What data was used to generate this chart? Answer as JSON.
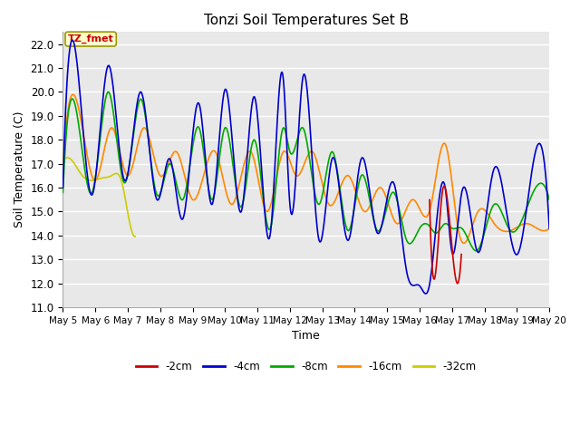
{
  "title": "Tonzi Soil Temperatures Set B",
  "xlabel": "Time",
  "ylabel": "Soil Temperature (C)",
  "ylim": [
    11.0,
    22.5
  ],
  "yticks": [
    11.0,
    12.0,
    13.0,
    14.0,
    15.0,
    16.0,
    17.0,
    18.0,
    19.0,
    20.0,
    21.0,
    22.0
  ],
  "bg_color": "#ffffff",
  "plot_bg_color": "#e8e8e8",
  "grid_color": "#ffffff",
  "annotation_text": "TZ_fmet",
  "annotation_color": "#cc0000",
  "annotation_bg": "#ffffcc",
  "annotation_border": "#999900",
  "series": {
    "2cm": {
      "color": "#cc0000",
      "label": "-2cm",
      "lw": 1.2
    },
    "4cm": {
      "color": "#0000cc",
      "label": "-4cm",
      "lw": 1.2
    },
    "8cm": {
      "color": "#00aa00",
      "label": "-8cm",
      "lw": 1.2
    },
    "16cm": {
      "color": "#ff8800",
      "label": "-16cm",
      "lw": 1.2
    },
    "32cm": {
      "color": "#cccc00",
      "label": "-32cm",
      "lw": 1.2
    }
  },
  "xtick_labels": [
    "May 5",
    "May 6",
    "May 7",
    "May 8",
    "May 9",
    "May 10",
    "May 11",
    "May 12",
    "May 13",
    "May 14",
    "May 15",
    "May 16",
    "May 17",
    "May 18",
    "May 19",
    "May 20"
  ],
  "num_points": 720
}
